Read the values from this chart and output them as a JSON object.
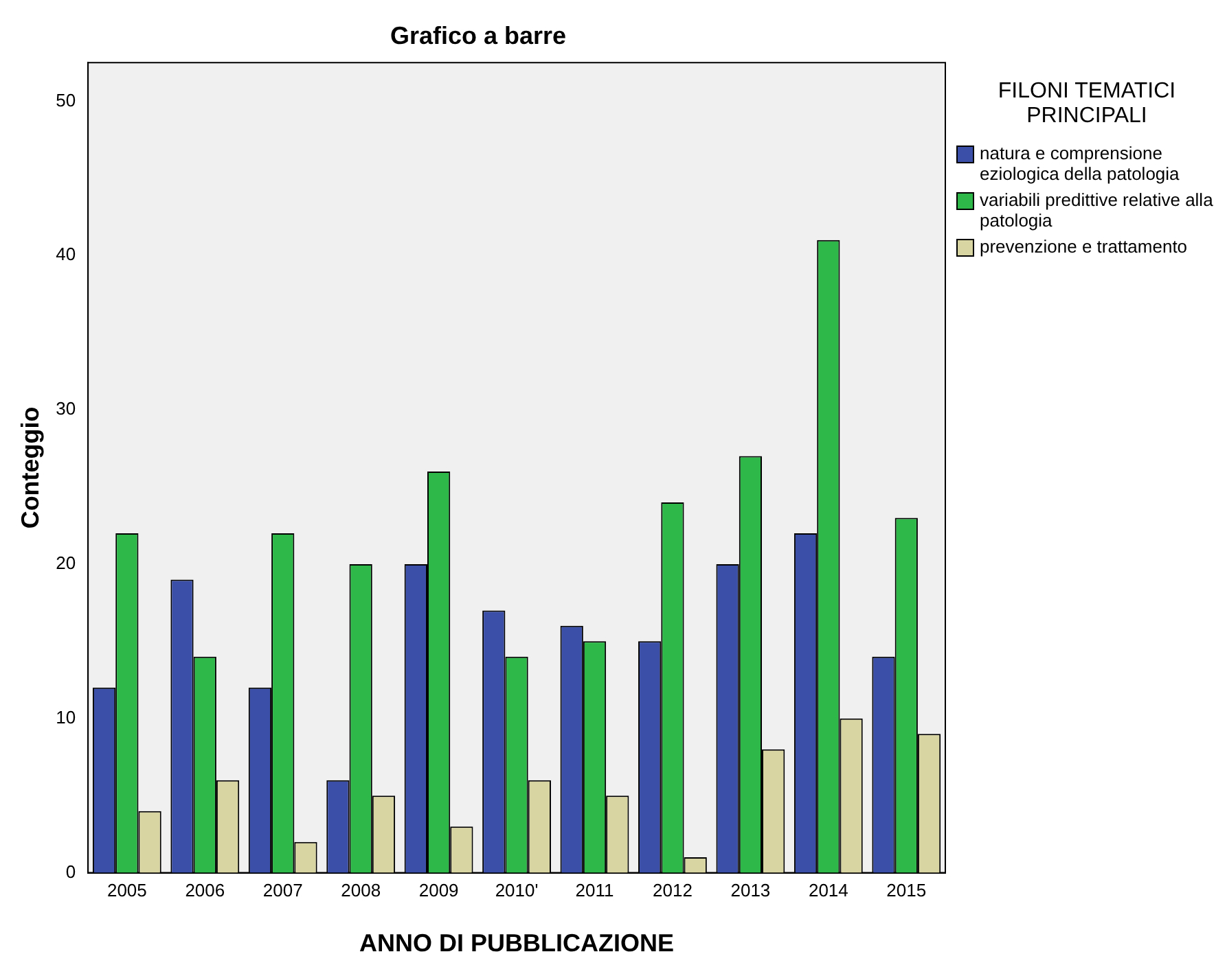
{
  "chart_data": {
    "type": "bar",
    "title": "Grafico a barre",
    "xlabel": "ANNO DI PUBBLICAZIONE",
    "ylabel": "Conteggio",
    "legend_title": "FILONI TEMATICI PRINCIPALI",
    "legend": "right",
    "grid": false,
    "categories": [
      "2005",
      "2006",
      "2007",
      "2008",
      "2009",
      "2010'",
      "2011",
      "2012",
      "2013",
      "2014",
      "2015"
    ],
    "ylim": [
      0,
      52.5
    ],
    "yticks": [
      0,
      10,
      20,
      30,
      40,
      50
    ],
    "series": [
      {
        "name": "natura e comprensione eziologica della patologia",
        "color": "#3b4fa8",
        "values": [
          12,
          19,
          12,
          6,
          20,
          17,
          16,
          15,
          20,
          22,
          14
        ]
      },
      {
        "name": "variabili predittive relative alla patologia",
        "color": "#2fb84a",
        "values": [
          22,
          14,
          22,
          20,
          26,
          14,
          15,
          24,
          27,
          41,
          23
        ]
      },
      {
        "name": "prevenzione e trattamento",
        "color": "#d9d5a2",
        "values": [
          4,
          6,
          2,
          5,
          3,
          6,
          5,
          1,
          8,
          10,
          9
        ]
      }
    ]
  }
}
